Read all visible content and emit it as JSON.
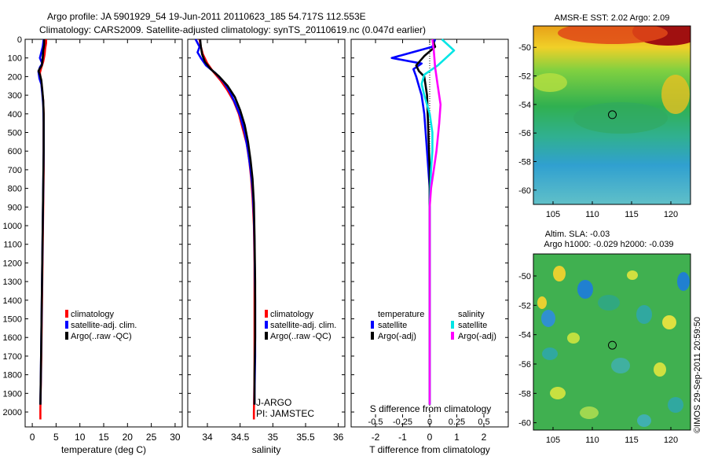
{
  "header": {
    "line1": "Argo profile: JA 5901929_54 19-Jun-2011 20110623_185 54.717S 112.553E",
    "line2": "Climatology: CARS2009. Satellite-adjusted climatology: synTS_20110619.nc (0.047d earlier)"
  },
  "colors": {
    "climatology": "#ff0000",
    "satellite": "#0000ff",
    "argo": "#000000",
    "s_satellite": "#00e5e5",
    "s_argo": "#ff00ff"
  },
  "chart_data": [
    {
      "id": "temperature",
      "type": "line",
      "xlabel": "temperature (deg C)",
      "xlim": [
        -1.5,
        31.5
      ],
      "xticks": [
        0,
        5,
        10,
        15,
        20,
        25,
        30
      ],
      "ylim": [
        2080,
        0
      ],
      "yticks": [
        0,
        100,
        200,
        300,
        400,
        500,
        600,
        700,
        800,
        900,
        1000,
        1100,
        1200,
        1300,
        1400,
        1500,
        1600,
        1700,
        1800,
        1900,
        2000
      ],
      "legend": [
        "climatology",
        "satellite-adj. clim.",
        "Argo(..raw -QC)"
      ],
      "series": [
        {
          "name": "climatology",
          "color": "#ff0000",
          "points": [
            [
              2.9,
              0
            ],
            [
              2.9,
              20
            ],
            [
              2.7,
              50
            ],
            [
              2.6,
              80
            ],
            [
              2.3,
              120
            ],
            [
              1.8,
              160
            ],
            [
              1.6,
              180
            ],
            [
              1.7,
              200
            ],
            [
              1.9,
              230
            ],
            [
              2.1,
              280
            ],
            [
              2.3,
              330
            ],
            [
              2.4,
              400
            ],
            [
              2.4,
              500
            ],
            [
              2.4,
              700
            ],
            [
              2.3,
              900
            ],
            [
              2.2,
              1100
            ],
            [
              2.1,
              1300
            ],
            [
              2.0,
              1500
            ],
            [
              1.9,
              1700
            ],
            [
              1.8,
              1850
            ],
            [
              1.7,
              1980
            ],
            [
              1.7,
              2040
            ]
          ]
        },
        {
          "name": "satellite-adj. clim.",
          "color": "#0000ff",
          "points": [
            [
              2.4,
              0
            ],
            [
              2.2,
              40
            ],
            [
              1.6,
              100
            ],
            [
              2.1,
              130
            ],
            [
              1.6,
              150
            ],
            [
              1.3,
              175
            ],
            [
              1.5,
              210
            ],
            [
              1.9,
              240
            ],
            [
              2.1,
              290
            ],
            [
              2.3,
              350
            ],
            [
              2.4,
              450
            ],
            [
              2.4,
              600
            ],
            [
              2.3,
              800
            ],
            [
              2.2,
              1000
            ],
            [
              2.1,
              1200
            ],
            [
              2.0,
              1400
            ],
            [
              1.9,
              1600
            ],
            [
              1.8,
              1800
            ],
            [
              1.7,
              1960
            ]
          ]
        },
        {
          "name": "Argo(..raw -QC)",
          "color": "#000000",
          "points": [
            [
              2.5,
              0
            ],
            [
              2.5,
              30
            ],
            [
              2.3,
              60
            ],
            [
              2.2,
              100
            ],
            [
              2.0,
              140
            ],
            [
              1.5,
              160
            ],
            [
              1.3,
              170
            ],
            [
              1.6,
              190
            ],
            [
              1.9,
              220
            ],
            [
              2.1,
              270
            ],
            [
              2.3,
              330
            ],
            [
              2.4,
              400
            ],
            [
              2.4,
              600
            ],
            [
              2.3,
              800
            ],
            [
              2.2,
              1000
            ],
            [
              2.1,
              1200
            ],
            [
              2.0,
              1400
            ],
            [
              1.9,
              1600
            ],
            [
              1.8,
              1800
            ],
            [
              1.7,
              1960
            ]
          ]
        }
      ]
    },
    {
      "id": "salinity",
      "type": "line",
      "xlabel": "salinity",
      "xlim": [
        33.7,
        36.1
      ],
      "xticks": [
        34,
        34.5,
        35,
        35.5,
        36
      ],
      "xtick_labels": [
        "34",
        "34.5",
        "35",
        "35.5",
        "36"
      ],
      "ylim": [
        2080,
        0
      ],
      "legend": [
        "climatology",
        "satellite-adj. clim.",
        "Argo(..raw -QC)"
      ],
      "series": [
        {
          "name": "climatology",
          "color": "#ff0000",
          "points": [
            [
              33.88,
              0
            ],
            [
              33.9,
              40
            ],
            [
              33.93,
              80
            ],
            [
              34.0,
              130
            ],
            [
              34.08,
              170
            ],
            [
              34.2,
              220
            ],
            [
              34.3,
              270
            ],
            [
              34.4,
              330
            ],
            [
              34.48,
              400
            ],
            [
              34.54,
              480
            ],
            [
              34.6,
              560
            ],
            [
              34.64,
              650
            ],
            [
              34.67,
              750
            ],
            [
              34.69,
              850
            ],
            [
              34.71,
              1000
            ],
            [
              34.72,
              1200
            ],
            [
              34.72,
              1400
            ],
            [
              34.72,
              1600
            ],
            [
              34.72,
              1800
            ],
            [
              34.71,
              2000
            ],
            [
              34.71,
              2040
            ]
          ]
        },
        {
          "name": "satellite-adj. clim.",
          "color": "#0000ff",
          "points": [
            [
              33.82,
              0
            ],
            [
              33.88,
              40
            ],
            [
              33.85,
              70
            ],
            [
              33.9,
              100
            ],
            [
              33.98,
              140
            ],
            [
              34.12,
              180
            ],
            [
              34.25,
              230
            ],
            [
              34.34,
              280
            ],
            [
              34.42,
              340
            ],
            [
              34.5,
              410
            ],
            [
              34.57,
              500
            ],
            [
              34.62,
              600
            ],
            [
              34.66,
              700
            ],
            [
              34.69,
              800
            ],
            [
              34.71,
              950
            ],
            [
              34.72,
              1100
            ],
            [
              34.73,
              1400
            ],
            [
              34.73,
              1700
            ],
            [
              34.72,
              1900
            ],
            [
              34.72,
              1960
            ]
          ]
        },
        {
          "name": "Argo(..raw -QC)",
          "color": "#000000",
          "points": [
            [
              33.89,
              0
            ],
            [
              33.9,
              40
            ],
            [
              33.92,
              80
            ],
            [
              33.96,
              120
            ],
            [
              34.05,
              160
            ],
            [
              34.18,
              200
            ],
            [
              34.31,
              250
            ],
            [
              34.42,
              310
            ],
            [
              34.5,
              380
            ],
            [
              34.57,
              460
            ],
            [
              34.62,
              550
            ],
            [
              34.66,
              650
            ],
            [
              34.69,
              750
            ],
            [
              34.71,
              880
            ],
            [
              34.72,
              1050
            ],
            [
              34.73,
              1300
            ],
            [
              34.73,
              1600
            ],
            [
              34.72,
              1800
            ],
            [
              34.72,
              1960
            ]
          ]
        }
      ],
      "annotation": [
        "J-ARGO",
        "PI: JAMSTEC"
      ]
    },
    {
      "id": "difference",
      "type": "line",
      "xlabel": "T difference from climatology",
      "xlabel_top": "S difference from climatology",
      "xlim": [
        -2.9,
        2.9
      ],
      "xticks_bottom": [
        -2,
        -1,
        0,
        1,
        2
      ],
      "xticks_top": [
        -0.5,
        -0.25,
        0,
        0.25,
        0.5
      ],
      "xtick_labels_top": [
        "-0.5",
        "-0.25",
        "0",
        "0.25",
        "0.5"
      ],
      "s_scale_note": "S difference scaled x4 onto T axis",
      "ylim": [
        2080,
        0
      ],
      "legend_temperature_title": "temperature",
      "legend_salinity_title": "salinity",
      "legend_temperature": [
        "satellite",
        "Argo(-adj)"
      ],
      "legend_salinity": [
        "satellite",
        "Argo(-adj)"
      ],
      "series": [
        {
          "name": "T satellite",
          "color": "#0000ff",
          "points": [
            [
              0.2,
              0
            ],
            [
              0.1,
              40
            ],
            [
              -0.9,
              80
            ],
            [
              -1.4,
              100
            ],
            [
              -0.3,
              130
            ],
            [
              -0.6,
              160
            ],
            [
              -0.5,
              200
            ],
            [
              -0.4,
              250
            ],
            [
              -0.3,
              300
            ],
            [
              -0.2,
              400
            ],
            [
              -0.1,
              600
            ],
            [
              0,
              800
            ],
            [
              0,
              1200
            ],
            [
              0,
              1600
            ],
            [
              0,
              1960
            ]
          ]
        },
        {
          "name": "T Argo(-adj)",
          "color": "#000000",
          "points": [
            [
              0.1,
              0
            ],
            [
              0.2,
              40
            ],
            [
              -0.2,
              90
            ],
            [
              -0.5,
              140
            ],
            [
              -0.4,
              170
            ],
            [
              -0.2,
              200
            ],
            [
              -0.1,
              300
            ],
            [
              -0.05,
              500
            ],
            [
              0,
              700
            ],
            [
              0,
              1000
            ],
            [
              0,
              1400
            ],
            [
              0,
              1800
            ],
            [
              0,
              1960
            ]
          ]
        },
        {
          "name": "S satellite",
          "color": "#00e5e5",
          "points": [
            [
              0.45,
              0
            ],
            [
              0.9,
              60
            ],
            [
              0.6,
              100
            ],
            [
              0.3,
              140
            ],
            [
              -0.2,
              190
            ],
            [
              -0.3,
              240
            ],
            [
              -0.2,
              300
            ],
            [
              0,
              400
            ],
            [
              0.1,
              500
            ],
            [
              0.1,
              600
            ],
            [
              0.05,
              700
            ],
            [
              0,
              900
            ],
            [
              0,
              1400
            ],
            [
              0,
              1800
            ],
            [
              0,
              1960
            ]
          ]
        },
        {
          "name": "S Argo(-adj)",
          "color": "#ff00ff",
          "points": [
            [
              0.1,
              0
            ],
            [
              0.15,
              60
            ],
            [
              0.2,
              150
            ],
            [
              0.3,
              250
            ],
            [
              0.4,
              350
            ],
            [
              0.35,
              450
            ],
            [
              0.25,
              600
            ],
            [
              0.15,
              700
            ],
            [
              0.05,
              800
            ],
            [
              0,
              900
            ],
            [
              0,
              1400
            ],
            [
              0,
              1800
            ],
            [
              0,
              1960
            ]
          ]
        }
      ]
    },
    {
      "id": "map-sst",
      "type": "heatmap",
      "title": "AMSR-E SST: 2.02 Argo: 2.09",
      "xlim": [
        102.5,
        122.5
      ],
      "ylim": [
        -61,
        -48.5
      ],
      "xticks": [
        105,
        110,
        115,
        120
      ],
      "yticks": [
        -50,
        -52,
        -54,
        -56,
        -58,
        -60
      ],
      "marker": {
        "lon": 112.553,
        "lat": -54.717
      }
    },
    {
      "id": "map-sla",
      "type": "heatmap",
      "title": "Altim. SLA: -0.03",
      "subtitle": "Argo h1000: -0.029 h2000: -0.039",
      "xlim": [
        102.5,
        122.5
      ],
      "ylim": [
        -60.5,
        -48.5
      ],
      "xticks": [
        105,
        110,
        115,
        120
      ],
      "yticks": [
        -50,
        -52,
        -54,
        -56,
        -58,
        -60
      ],
      "marker": {
        "lon": 112.553,
        "lat": -54.717
      }
    }
  ],
  "footer": {
    "credit": "©IMOS 29-Sep-2011 20:59:50"
  }
}
